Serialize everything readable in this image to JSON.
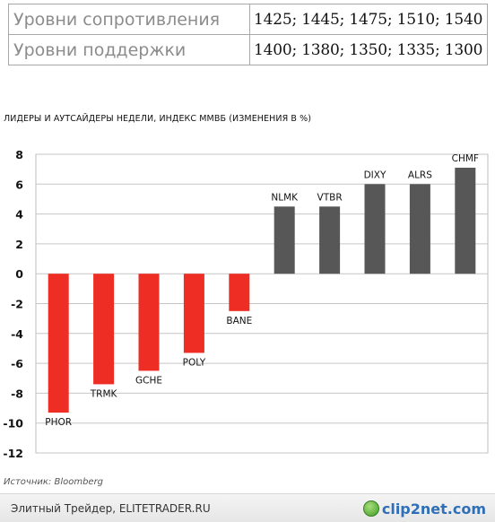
{
  "levels": {
    "resistance": {
      "label": "Уровни сопротивления",
      "values": "1425; 1445; 1475; 1510; 1540"
    },
    "support": {
      "label": "Уровни поддержки",
      "values": "1400; 1380; 1350; 1335; 1300"
    }
  },
  "chart_data": {
    "type": "bar",
    "title": "ЛИДЕРЫ И АУТСАЙДЕРЫ НЕДЕЛИ, ИНДЕКС ММВБ (ИЗМЕНЕНИЯ В %)",
    "xlabel": "",
    "ylabel": "",
    "categories": [
      "PHOR",
      "TRMK",
      "GCHE",
      "POLY",
      "BANE",
      "NLMK",
      "VTBR",
      "DIXY",
      "ALRS",
      "CHMF"
    ],
    "values": [
      -9.3,
      -7.4,
      -6.5,
      -5.3,
      -2.5,
      4.5,
      4.5,
      6.0,
      6.0,
      7.1
    ],
    "ylim": [
      -12,
      8
    ],
    "yticks": [
      8,
      6,
      4,
      2,
      0,
      -2,
      -4,
      -6,
      -8,
      -10,
      -12
    ],
    "grid": true,
    "colors": {
      "negative": "#ee2e24",
      "positive": "#575757"
    }
  },
  "source": "Источник: Bloomberg",
  "footer": {
    "site": "Элитный Трейдер, ELITETRADER.RU",
    "watermark": "clip2net.com"
  }
}
